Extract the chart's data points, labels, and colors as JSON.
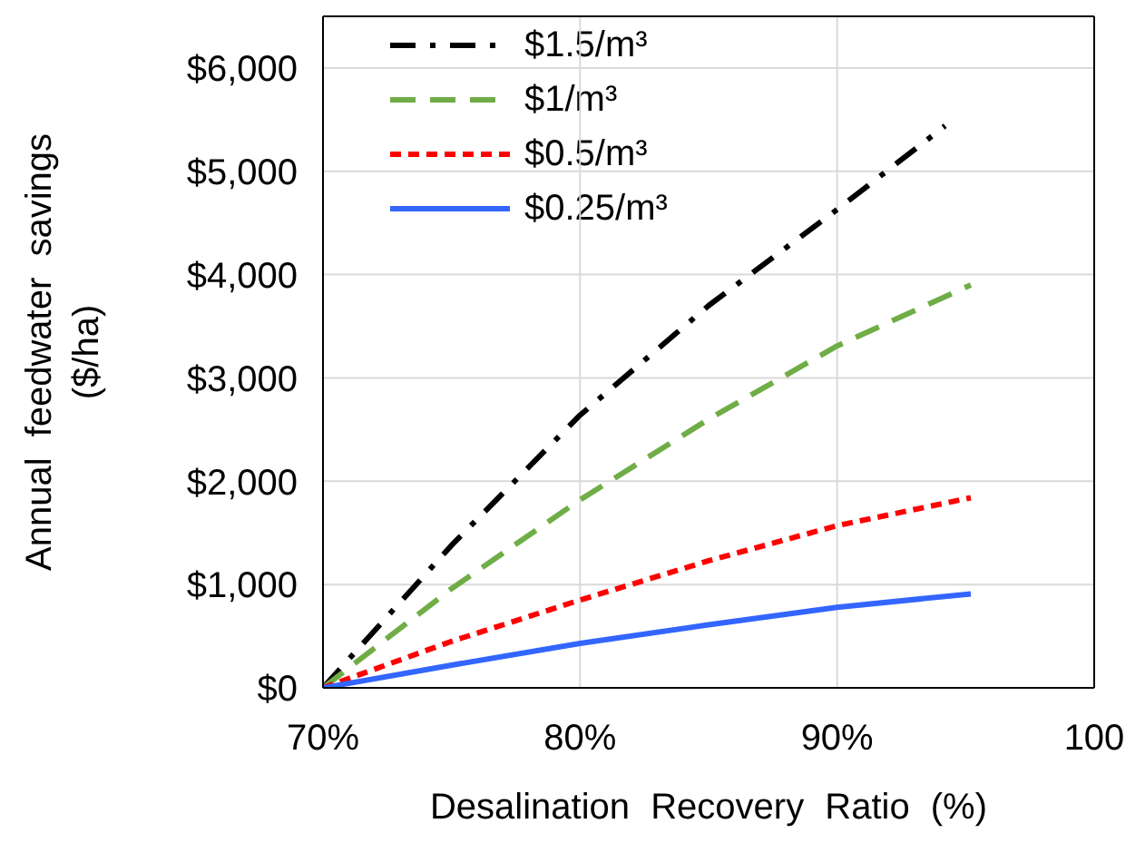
{
  "chart_data": {
    "type": "line",
    "xlabel": "Desalination Recovery Ratio (%)",
    "ylabel": "Annual feedwater savings ($/ha)",
    "x": [
      70,
      75,
      80,
      85,
      90,
      95.2
    ],
    "series": [
      {
        "name": "$1.5/m³",
        "color": "#000000",
        "line_style": "dashdot",
        "x": [
          70,
          75,
          80,
          85,
          90,
          94.2
        ],
        "values": [
          0,
          1380,
          2640,
          3700,
          4630,
          5440
        ]
      },
      {
        "name": "$1/m³",
        "color": "#70ad47",
        "line_style": "dashed",
        "values": [
          0,
          960,
          1820,
          2600,
          3310,
          3900
        ]
      },
      {
        "name": "$0.5/m³",
        "color": "#ff0000",
        "line_style": "dotted",
        "values": [
          0,
          450,
          850,
          1230,
          1570,
          1840
        ]
      },
      {
        "name": "$0.25/m³",
        "color": "#3366ff",
        "line_style": "solid",
        "values": [
          0,
          220,
          430,
          610,
          780,
          910
        ]
      }
    ],
    "xlim": [
      70,
      100
    ],
    "xticks": [
      {
        "value": 70,
        "label": "70%"
      },
      {
        "value": 80,
        "label": "80%"
      },
      {
        "value": 90,
        "label": "90%"
      },
      {
        "value": 100,
        "label": "100"
      }
    ],
    "ylim": [
      0,
      6500
    ],
    "yticks": [
      {
        "value": 0,
        "label": "$0"
      },
      {
        "value": 1000,
        "label": "$1,000"
      },
      {
        "value": 2000,
        "label": "$2,000"
      },
      {
        "value": 3000,
        "label": "$3,000"
      },
      {
        "value": 4000,
        "label": "$4,000"
      },
      {
        "value": 5000,
        "label": "$5,000"
      },
      {
        "value": 6000,
        "label": "$6,000"
      }
    ],
    "grid": true,
    "legend": "top left",
    "marker": "none"
  }
}
